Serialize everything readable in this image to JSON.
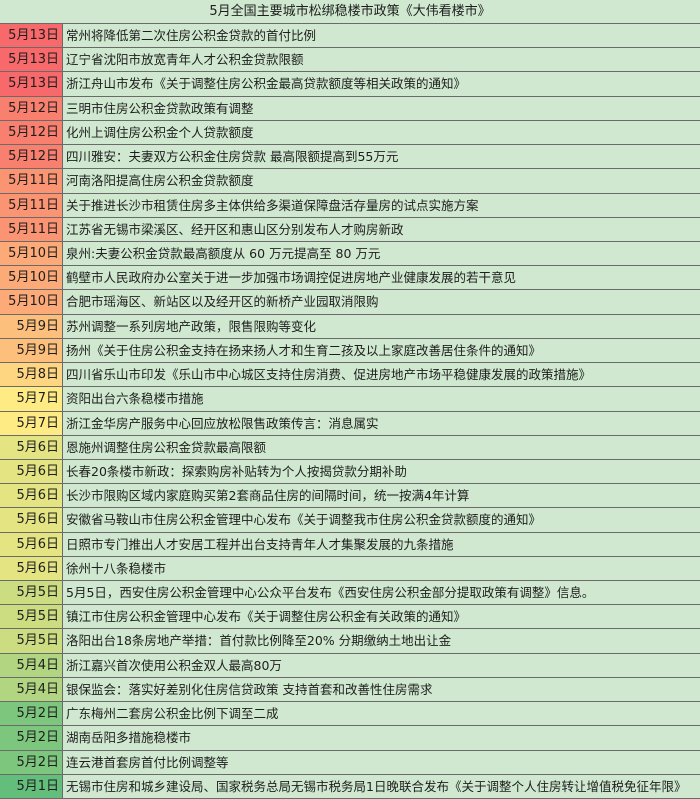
{
  "title": "5月全国主要城市松绑稳楼市政策《大伟看楼市》",
  "scale_colors": {
    "min": "#63be7b",
    "mid": "#ffeb84",
    "max": "#f8696b"
  },
  "rows": [
    {
      "date": "5月13日",
      "day": 13,
      "text": "常州将降低第二次住房公积金贷款的首付比例"
    },
    {
      "date": "5月13日",
      "day": 13,
      "text": "辽宁省沈阳市放宽青年人才公积金贷款限额"
    },
    {
      "date": "5月13日",
      "day": 13,
      "text": "浙江舟山市发布《关于调整住房公积金最高贷款额度等相关政策的通知》"
    },
    {
      "date": "5月12日",
      "day": 12,
      "text": "三明市住房公积金贷款政策有调整"
    },
    {
      "date": "5月12日",
      "day": 12,
      "text": "化州上调住房公积金个人贷款额度"
    },
    {
      "date": "5月12日",
      "day": 12,
      "text": "四川雅安：夫妻双方公积金住房贷款 最高限额提高到55万元"
    },
    {
      "date": "5月11日",
      "day": 11,
      "text": "河南洛阳提高住房公积金贷款额度"
    },
    {
      "date": "5月11日",
      "day": 11,
      "text": "关于推进长沙市租赁住房多主体供给多渠道保障盘活存量房的试点实施方案"
    },
    {
      "date": "5月11日",
      "day": 11,
      "text": "江苏省无锡市梁溪区、经开区和惠山区分别发布人才购房新政"
    },
    {
      "date": "5月10日",
      "day": 10,
      "text": "泉州:夫妻公积金贷款最高额度从 60 万元提高至 80 万元"
    },
    {
      "date": "5月10日",
      "day": 10,
      "text": "鹤壁市人民政府办公室关于进一步加强市场调控促进房地产业健康发展的若干意见"
    },
    {
      "date": "5月10日",
      "day": 10,
      "text": "合肥市瑶海区、新站区以及经开区的新桥产业园取消限购"
    },
    {
      "date": "5月9日",
      "day": 9,
      "text": "苏州调整一系列房地产政策，限售限购等变化"
    },
    {
      "date": "5月9日",
      "day": 9,
      "text": "扬州《关于住房公积金支持在扬来扬人才和生育二孩及以上家庭改善居住条件的通知》"
    },
    {
      "date": "5月8日",
      "day": 8,
      "text": "四川省乐山市印发《乐山市中心城区支持住房消费、促进房地产市场平稳健康发展的政策措施》"
    },
    {
      "date": "5月7日",
      "day": 7,
      "text": "资阳出台六条稳楼市措施"
    },
    {
      "date": "5月7日",
      "day": 7,
      "text": "浙江金华房产服务中心回应放松限售政策传言：消息属实"
    },
    {
      "date": "5月6日",
      "day": 6,
      "text": "恩施州调整住房公积金贷款最高限额"
    },
    {
      "date": "5月6日",
      "day": 6,
      "text": "长春20条楼市新政：探索购房补贴转为个人按揭贷款分期补助"
    },
    {
      "date": "5月6日",
      "day": 6,
      "text": "长沙市限购区域内家庭购买第2套商品住房的间隔时间，统一按满4年计算"
    },
    {
      "date": "5月6日",
      "day": 6,
      "text": "安徽省马鞍山市住房公积金管理中心发布《关于调整我市住房公积金贷款额度的通知》"
    },
    {
      "date": "5月6日",
      "day": 6,
      "text": "日照市专门推出人才安居工程并出台支持青年人才集聚发展的九条措施"
    },
    {
      "date": "5月6日",
      "day": 6,
      "text": "徐州十八条稳楼市"
    },
    {
      "date": "5月5日",
      "day": 5,
      "text": "5月5日，西安住房公积金管理中心公众平台发布《西安住房公积金部分提取政策有调整》信息。"
    },
    {
      "date": "5月5日",
      "day": 5,
      "text": "镇江市住房公积金管理中心发布《关于调整住房公积金有关政策的通知》"
    },
    {
      "date": "5月5日",
      "day": 5,
      "text": "洛阳出台18条房地产举措：首付款比例降至20% 分期缴纳土地出让金"
    },
    {
      "date": "5月4日",
      "day": 4,
      "text": "浙江嘉兴首次使用公积金双人最高80万"
    },
    {
      "date": "5月4日",
      "day": 4,
      "text": "银保监会：落实好差别化住房信贷政策 支持首套和改善性住房需求"
    },
    {
      "date": "5月2日",
      "day": 2,
      "text": "广东梅州二套房公积金比例下调至二成"
    },
    {
      "date": "5月2日",
      "day": 2,
      "text": "湖南岳阳多措施稳楼市"
    },
    {
      "date": "5月2日",
      "day": 2,
      "text": "连云港首套房首付比例调整等"
    },
    {
      "date": "5月1日",
      "day": 1,
      "text": "无锡市住房和城乡建设局、国家税务总局无锡市税务局1日晚联合发布《关于调整个人住房转让增值税免征年限》"
    }
  ]
}
